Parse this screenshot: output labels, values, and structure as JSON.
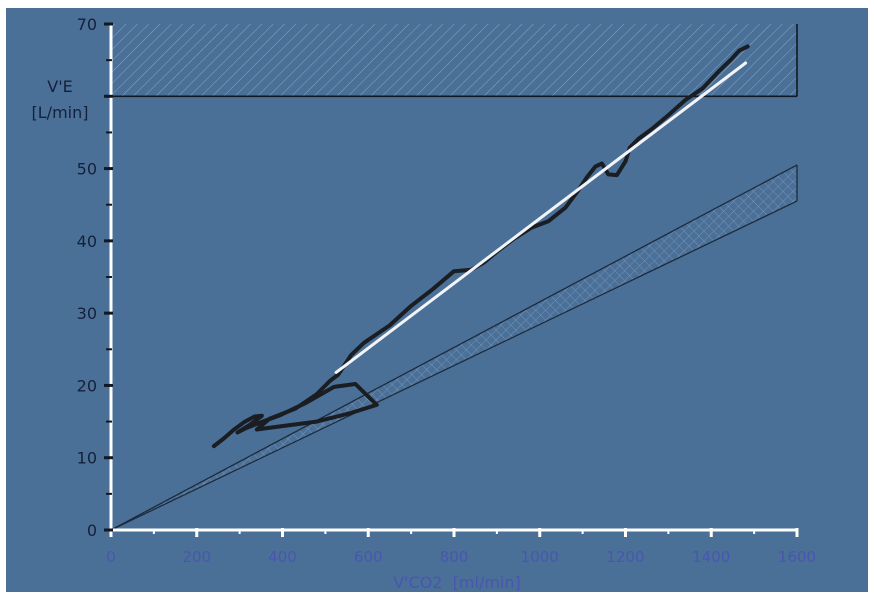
{
  "chart_data": {
    "type": "line",
    "title": "",
    "ylabel": "V'E",
    "ylabel_unit": "[L/min]",
    "xlabel": "V'CO2  [ml/min]",
    "xlim": [
      0,
      1600
    ],
    "ylim": [
      0,
      70
    ],
    "x_ticks": [
      0,
      200,
      400,
      600,
      800,
      1000,
      1200,
      1400,
      1600
    ],
    "y_ticks": [
      0,
      10,
      20,
      30,
      40,
      50,
      60,
      70
    ],
    "y_tick_labels": [
      "0",
      "10",
      "20",
      "30",
      "40",
      "50",
      "",
      "70"
    ],
    "grid": false,
    "legend": "none",
    "colors": {
      "plot_background": "#4a7098",
      "axis": "#ffffff",
      "x_tick_labels": "#4a55b0",
      "y_tick_labels": "#15203a",
      "measured": "#1a1d22",
      "regression": "#f2f4f8",
      "reference": "#1e2a3a"
    },
    "upper_limit_band": {
      "y_from": 60,
      "y_to": 70,
      "x_from": 0,
      "x_to": 1600
    },
    "reference_band": {
      "lower": {
        "x": [
          0,
          1600
        ],
        "y": [
          0,
          45.5
        ]
      },
      "upper": {
        "x": [
          0,
          1600
        ],
        "y": [
          0,
          50.5
        ]
      }
    },
    "series": [
      {
        "role": "measured",
        "x": [
          240,
          262,
          285,
          310,
          335,
          352,
          325,
          295,
          315,
          345,
          395,
          455,
          520,
          570,
          620,
          560,
          480,
          390,
          340,
          370,
          430,
          480,
          510,
          530,
          560,
          590,
          620,
          650,
          700,
          750,
          800,
          840,
          870,
          900,
          940,
          980,
          1020,
          1060,
          1090,
          1110,
          1130,
          1145,
          1160,
          1180,
          1200,
          1210,
          1230,
          1260,
          1300,
          1340,
          1380,
          1420,
          1445,
          1465,
          1485
        ],
        "y": [
          11.6,
          12.6,
          13.8,
          14.9,
          15.7,
          15.8,
          14.6,
          13.5,
          14.1,
          14.8,
          15.9,
          17.6,
          19.8,
          20.2,
          17.3,
          16.2,
          15.0,
          14.3,
          13.9,
          15.4,
          16.8,
          18.8,
          20.6,
          21.5,
          24.2,
          25.9,
          27.1,
          28.3,
          31.0,
          33.3,
          35.8,
          36.0,
          37.0,
          38.5,
          40.3,
          41.8,
          42.7,
          44.6,
          47.0,
          48.8,
          50.3,
          50.7,
          49.2,
          49.1,
          51.0,
          52.9,
          54.1,
          55.4,
          57.4,
          59.5,
          61.1,
          63.6,
          65.0,
          66.3,
          66.9
        ]
      },
      {
        "role": "regression",
        "x": [
          525,
          1480
        ],
        "y": [
          21.8,
          64.6
        ]
      }
    ]
  }
}
